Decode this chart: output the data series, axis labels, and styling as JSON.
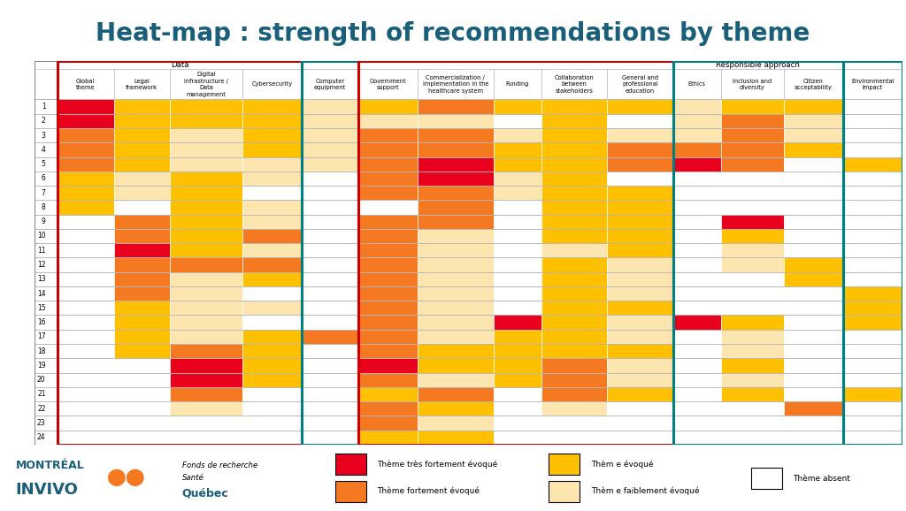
{
  "title": "Heat-map : strength of recommendations by theme",
  "title_color": "#1a5f7a",
  "bg_color": "#ffffff",
  "colors": {
    "V": "#e8001c",
    "S": "#f47920",
    "M": "#ffc000",
    "W": "#fde5b0",
    "A": "#ffffff"
  },
  "columns": [
    "Global\ntheme",
    "Legal\nframework",
    "Digital\ninfrastructure /\nData\nmanagement",
    "Cybersecurity",
    "Computer\nequipment",
    "Government\nsupport",
    "Commercialization /\nImplementation in the\nhealthcare system",
    "Funding",
    "Collaboration\nbetween\nstakeholders",
    "General and\nprofessional\neducation",
    "Ethics",
    "Inclusion and\ndiversity",
    "Citizen\nacceptability",
    "Environmental\nimpact"
  ],
  "col_widths": [
    0.85,
    0.85,
    1.1,
    0.9,
    0.85,
    0.9,
    1.15,
    0.72,
    1.0,
    1.0,
    0.72,
    0.95,
    0.9,
    0.9
  ],
  "data": [
    [
      "V",
      "M",
      "M",
      "M",
      "W",
      "M",
      "S",
      "M",
      "M",
      "M",
      "W",
      "M",
      "M",
      "A"
    ],
    [
      "V",
      "M",
      "M",
      "M",
      "W",
      "W",
      "W",
      "A",
      "M",
      "A",
      "W",
      "S",
      "W",
      "A"
    ],
    [
      "S",
      "M",
      "W",
      "M",
      "W",
      "S",
      "S",
      "W",
      "M",
      "W",
      "W",
      "S",
      "W",
      "A"
    ],
    [
      "S",
      "M",
      "W",
      "M",
      "W",
      "S",
      "S",
      "M",
      "M",
      "S",
      "S",
      "S",
      "M",
      "A"
    ],
    [
      "S",
      "M",
      "W",
      "W",
      "W",
      "S",
      "V",
      "M",
      "M",
      "S",
      "V",
      "S",
      "A",
      "M"
    ],
    [
      "M",
      "W",
      "M",
      "W",
      "A",
      "S",
      "V",
      "W",
      "M",
      "A",
      "A",
      "A",
      "A",
      "A"
    ],
    [
      "M",
      "W",
      "M",
      "A",
      "A",
      "S",
      "S",
      "W",
      "M",
      "M",
      "A",
      "A",
      "A",
      "A"
    ],
    [
      "M",
      "A",
      "M",
      "W",
      "A",
      "A",
      "S",
      "A",
      "M",
      "M",
      "A",
      "A",
      "A",
      "A"
    ],
    [
      "A",
      "S",
      "M",
      "W",
      "A",
      "S",
      "S",
      "A",
      "M",
      "M",
      "A",
      "V",
      "A",
      "A"
    ],
    [
      "A",
      "S",
      "M",
      "S",
      "A",
      "S",
      "W",
      "A",
      "M",
      "M",
      "A",
      "M",
      "A",
      "A"
    ],
    [
      "A",
      "V",
      "M",
      "W",
      "A",
      "S",
      "W",
      "A",
      "W",
      "M",
      "A",
      "W",
      "A",
      "A"
    ],
    [
      "A",
      "S",
      "S",
      "S",
      "A",
      "S",
      "W",
      "A",
      "M",
      "W",
      "A",
      "W",
      "M",
      "A"
    ],
    [
      "A",
      "S",
      "W",
      "M",
      "A",
      "S",
      "W",
      "A",
      "M",
      "W",
      "A",
      "A",
      "M",
      "A"
    ],
    [
      "A",
      "S",
      "W",
      "A",
      "A",
      "S",
      "W",
      "A",
      "M",
      "W",
      "A",
      "A",
      "A",
      "M"
    ],
    [
      "A",
      "M",
      "W",
      "W",
      "A",
      "S",
      "W",
      "A",
      "M",
      "M",
      "A",
      "A",
      "A",
      "M"
    ],
    [
      "A",
      "M",
      "W",
      "A",
      "A",
      "S",
      "W",
      "V",
      "M",
      "W",
      "V",
      "M",
      "A",
      "M"
    ],
    [
      "A",
      "M",
      "W",
      "M",
      "S",
      "S",
      "W",
      "M",
      "M",
      "W",
      "A",
      "W",
      "A",
      "A"
    ],
    [
      "A",
      "M",
      "S",
      "M",
      "A",
      "S",
      "M",
      "M",
      "M",
      "M",
      "A",
      "W",
      "A",
      "A"
    ],
    [
      "A",
      "A",
      "V",
      "M",
      "A",
      "V",
      "M",
      "M",
      "S",
      "W",
      "A",
      "M",
      "A",
      "A"
    ],
    [
      "A",
      "A",
      "V",
      "M",
      "A",
      "S",
      "W",
      "M",
      "S",
      "W",
      "A",
      "W",
      "A",
      "A"
    ],
    [
      "A",
      "A",
      "S",
      "A",
      "A",
      "M",
      "S",
      "A",
      "S",
      "M",
      "A",
      "M",
      "A",
      "M"
    ],
    [
      "A",
      "A",
      "W",
      "A",
      "A",
      "S",
      "M",
      "A",
      "W",
      "A",
      "A",
      "A",
      "S",
      "A"
    ],
    [
      "A",
      "A",
      "A",
      "A",
      "A",
      "S",
      "W",
      "A",
      "A",
      "A",
      "A",
      "A",
      "A",
      "A"
    ],
    [
      "A",
      "A",
      "A",
      "A",
      "A",
      "M",
      "M",
      "A",
      "A",
      "A",
      "A",
      "A",
      "A",
      "A"
    ]
  ],
  "groups": [
    {
      "label": "Data",
      "start": 0,
      "end": 3,
      "border": "red",
      "header": true
    },
    {
      "label": "",
      "start": 4,
      "end": 4,
      "border": "teal",
      "header": false
    },
    {
      "label": "",
      "start": 5,
      "end": 9,
      "border": "red",
      "header": false
    },
    {
      "label": "Responsible approach",
      "start": 10,
      "end": 12,
      "border": "teal",
      "header": true
    },
    {
      "label": "",
      "start": 13,
      "end": 13,
      "border": "teal",
      "header": false
    }
  ],
  "legend": [
    {
      "color": "#e8001c",
      "label": "Thème très fortement évoqué"
    },
    {
      "color": "#f47920",
      "label": "Thème fortement évoqué"
    },
    {
      "color": "#ffc000",
      "label": "Thèm e évoqué"
    },
    {
      "color": "#fde5b0",
      "label": "Thèm e faiblement évoqué"
    },
    {
      "color": "#ffffff",
      "label": "Thème absent"
    }
  ]
}
